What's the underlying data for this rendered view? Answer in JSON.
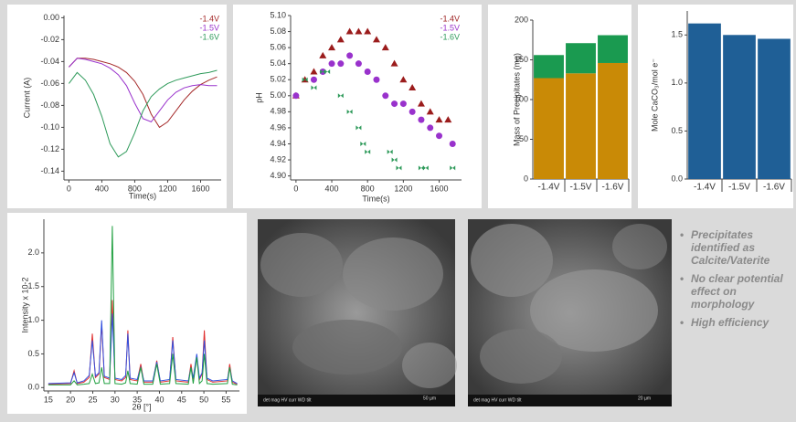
{
  "chart_data": [
    {
      "type": "line",
      "xlabel": "Time(s)",
      "ylabel": "Current (A)",
      "xlim": [
        -60,
        1850
      ],
      "xticks": [
        0,
        400,
        800,
        1200,
        1600
      ],
      "ylim": [
        -0.148,
        0.002
      ],
      "yticks": [
        {
          "value": 0,
          "label": "0.00"
        },
        {
          "value": -0.02,
          "label": "-0.02"
        },
        {
          "value": -0.04,
          "label": "-0.04"
        },
        {
          "value": -0.06,
          "label": "-0.06"
        },
        {
          "value": -0.08,
          "label": "-0.08"
        },
        {
          "value": -0.1,
          "label": "-0.10"
        },
        {
          "value": -0.12,
          "label": "-0.12"
        },
        {
          "value": -0.14,
          "label": "-0.14"
        }
      ],
      "legend": "top-right",
      "x": [
        0,
        100,
        200,
        300,
        400,
        500,
        600,
        700,
        800,
        900,
        1000,
        1100,
        1200,
        1300,
        1400,
        1500,
        1600,
        1700,
        1800
      ],
      "series": [
        {
          "name": "-1.4V",
          "color": "#a52a2a",
          "values": [
            -0.045,
            -0.037,
            -0.037,
            -0.038,
            -0.04,
            -0.042,
            -0.045,
            -0.05,
            -0.058,
            -0.07,
            -0.088,
            -0.1,
            -0.095,
            -0.085,
            -0.075,
            -0.067,
            -0.061,
            -0.057,
            -0.054
          ]
        },
        {
          "name": "-1.5V",
          "color": "#9932cc",
          "values": [
            -0.045,
            -0.037,
            -0.038,
            -0.04,
            -0.042,
            -0.046,
            -0.052,
            -0.062,
            -0.078,
            -0.092,
            -0.095,
            -0.085,
            -0.075,
            -0.068,
            -0.064,
            -0.062,
            -0.061,
            -0.062,
            -0.062
          ]
        },
        {
          "name": "-1.6V",
          "color": "#2e9a5a",
          "values": [
            -0.06,
            -0.05,
            -0.057,
            -0.07,
            -0.09,
            -0.115,
            -0.127,
            -0.122,
            -0.105,
            -0.085,
            -0.072,
            -0.065,
            -0.06,
            -0.057,
            -0.055,
            -0.053,
            -0.051,
            -0.05,
            -0.048
          ]
        }
      ]
    },
    {
      "type": "scatter",
      "xlabel": "Time(s)",
      "ylabel": "pH",
      "xlim": [
        -60,
        1850
      ],
      "xticks": [
        0,
        400,
        800,
        1200,
        1600
      ],
      "ylim": [
        4.895,
        5.1
      ],
      "yticks": [
        {
          "value": 4.9,
          "label": "4.90"
        },
        4.92,
        4.94,
        4.96,
        4.98,
        {
          "value": 5,
          "label": "5.00"
        },
        5.02,
        5.04,
        5.06,
        5.08,
        {
          "value": 5.1,
          "label": "5.10"
        }
      ],
      "legend": "top-right",
      "series": [
        {
          "name": "-1.4V",
          "color": "#9b1c1c",
          "marker": "triangle",
          "x": [
            0,
            100,
            200,
            300,
            400,
            500,
            600,
            700,
            800,
            900,
            1000,
            1100,
            1200,
            1300,
            1400,
            1500,
            1600,
            1700
          ],
          "values": [
            5.0,
            5.02,
            5.03,
            5.05,
            5.06,
            5.07,
            5.08,
            5.08,
            5.08,
            5.07,
            5.06,
            5.04,
            5.02,
            5.01,
            4.99,
            4.98,
            4.97,
            4.97
          ]
        },
        {
          "name": "-1.5V",
          "color": "#9932cc",
          "marker": "circle",
          "x": [
            0,
            200,
            300,
            400,
            500,
            600,
            700,
            800,
            900,
            1000,
            1100,
            1200,
            1300,
            1400,
            1500,
            1600,
            1750
          ],
          "values": [
            5.0,
            5.02,
            5.03,
            5.04,
            5.04,
            5.05,
            5.04,
            5.03,
            5.02,
            5.0,
            4.99,
            4.99,
            4.98,
            4.97,
            4.96,
            4.95,
            4.94
          ]
        },
        {
          "name": "-1.6V",
          "color": "#2e9a5a",
          "marker": "bowtie",
          "x": [
            100,
            200,
            300,
            350,
            500,
            600,
            700,
            750,
            800,
            1050,
            1100,
            1150,
            1400,
            1450,
            1750
          ],
          "values": [
            5.02,
            5.01,
            5.03,
            5.03,
            5.0,
            4.98,
            4.96,
            4.94,
            4.93,
            4.93,
            4.92,
            4.91,
            4.91,
            4.91,
            4.91
          ]
        }
      ]
    },
    {
      "type": "bar",
      "stacked": true,
      "ylabel": "Mass of Precipitates (mg)",
      "categories": [
        "-1.4V",
        "-1.5V",
        "-1.6V"
      ],
      "ylim": [
        0,
        200
      ],
      "yticks": [
        0,
        50,
        100,
        150,
        200
      ],
      "series": [
        {
          "color": "#c98a06",
          "values": [
            127,
            133,
            146
          ]
        },
        {
          "color": "#1a9a50",
          "values": [
            29,
            38,
            35
          ]
        }
      ]
    },
    {
      "type": "bar",
      "ylabel": "Mole CaCO₃/mol e⁻",
      "categories": [
        "-1.4V",
        "-1.5V",
        "-1.6V"
      ],
      "ylim": [
        0,
        1.75
      ],
      "yticks": [
        {
          "value": 0,
          "label": "0.0"
        },
        0.5,
        {
          "value": 1,
          "label": "1.0"
        },
        1.5
      ],
      "series": [
        {
          "color": "#1f5f96",
          "values": [
            1.62,
            1.5,
            1.46
          ]
        }
      ]
    },
    {
      "type": "line",
      "xlabel": "2θ [°]",
      "ylabel": "Intensity x 10-2",
      "xlim": [
        14,
        58
      ],
      "xticks": [
        15,
        20,
        25,
        30,
        35,
        40,
        45,
        50,
        55
      ],
      "ylim": [
        -0.05,
        2.5
      ],
      "yticks": [
        {
          "value": 0,
          "label": "0.0"
        },
        0.5,
        {
          "value": 1,
          "label": "1.0"
        },
        1.5,
        {
          "value": 2,
          "label": "2.0"
        }
      ],
      "x": [
        15,
        20,
        20.8,
        21.5,
        23,
        24.2,
        24.9,
        25.6,
        26.4,
        27,
        27.6,
        28.8,
        29.4,
        30,
        31.5,
        32.4,
        32.9,
        33.4,
        35,
        35.8,
        36.5,
        38.5,
        39.4,
        40.2,
        42.3,
        43,
        43.7,
        46.5,
        47.1,
        47.6,
        48.4,
        49,
        49.6,
        50.1,
        50.7,
        52,
        55.3,
        55.8,
        56.4,
        57.5
      ],
      "series": [
        {
          "color": "#e03030",
          "values": [
            0.05,
            0.06,
            0.25,
            0.06,
            0.08,
            0.15,
            0.8,
            0.15,
            0.2,
            0.95,
            0.15,
            0.12,
            1.3,
            0.12,
            0.1,
            0.15,
            0.85,
            0.12,
            0.1,
            0.35,
            0.08,
            0.08,
            0.4,
            0.08,
            0.1,
            0.75,
            0.1,
            0.08,
            0.35,
            0.12,
            0.45,
            0.12,
            0.2,
            0.85,
            0.12,
            0.08,
            0.1,
            0.35,
            0.08,
            0.05
          ]
        },
        {
          "color": "#3050e0",
          "values": [
            0.06,
            0.07,
            0.22,
            0.07,
            0.1,
            0.18,
            0.7,
            0.17,
            0.22,
            1.0,
            0.17,
            0.14,
            1.1,
            0.14,
            0.12,
            0.18,
            0.8,
            0.14,
            0.12,
            0.3,
            0.1,
            0.1,
            0.38,
            0.1,
            0.12,
            0.7,
            0.12,
            0.1,
            0.3,
            0.14,
            0.5,
            0.14,
            0.22,
            0.7,
            0.14,
            0.1,
            0.12,
            0.3,
            0.1,
            0.06
          ]
        },
        {
          "color": "#20a040",
          "values": [
            0.04,
            0.04,
            0.1,
            0.04,
            0.05,
            0.06,
            0.2,
            0.06,
            0.07,
            0.3,
            0.06,
            0.06,
            2.4,
            0.06,
            0.05,
            0.07,
            0.25,
            0.06,
            0.05,
            0.3,
            0.05,
            0.05,
            0.35,
            0.05,
            0.06,
            0.5,
            0.06,
            0.05,
            0.3,
            0.06,
            0.45,
            0.06,
            0.1,
            0.5,
            0.06,
            0.05,
            0.06,
            0.3,
            0.05,
            0.04
          ]
        }
      ]
    }
  ],
  "images": [
    {
      "info": "det  mag  HV  curr  WD  tilt",
      "scale": "50 µm"
    },
    {
      "info": "det  mag  HV  curr  WD  tilt",
      "scale": "20 µm"
    }
  ],
  "bullets": [
    "Precipitates identified as Calcite/Vaterite",
    "No clear potential effect on morphology",
    "High efficiency"
  ]
}
